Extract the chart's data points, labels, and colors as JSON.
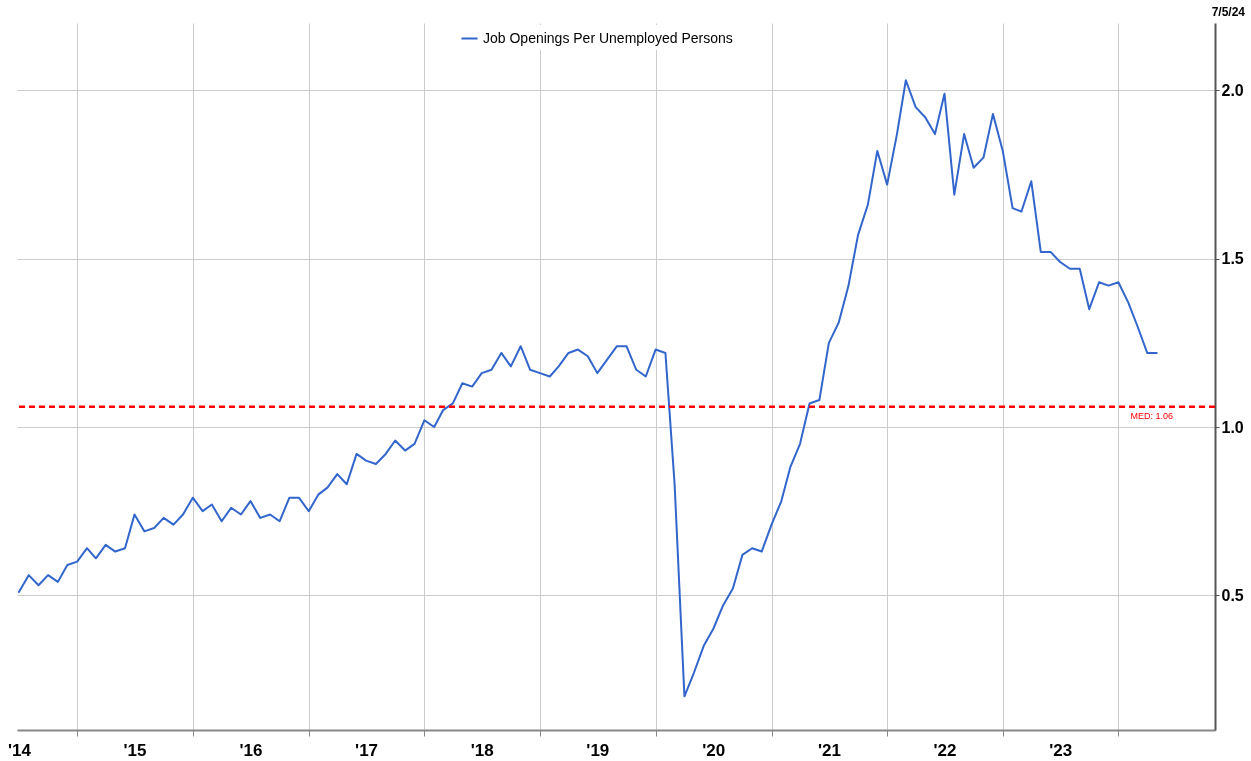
{
  "chart_data": {
    "type": "line",
    "legend": "top",
    "grid": true,
    "x": [
      "2014-07",
      "2014-08",
      "2014-09",
      "2014-10",
      "2014-11",
      "2014-12",
      "2015-01",
      "2015-02",
      "2015-03",
      "2015-04",
      "2015-05",
      "2015-06",
      "2015-07",
      "2015-08",
      "2015-09",
      "2015-10",
      "2015-11",
      "2015-12",
      "2016-01",
      "2016-02",
      "2016-03",
      "2016-04",
      "2016-05",
      "2016-06",
      "2016-07",
      "2016-08",
      "2016-09",
      "2016-10",
      "2016-11",
      "2016-12",
      "2017-01",
      "2017-02",
      "2017-03",
      "2017-04",
      "2017-05",
      "2017-06",
      "2017-07",
      "2017-08",
      "2017-09",
      "2017-10",
      "2017-11",
      "2017-12",
      "2018-01",
      "2018-02",
      "2018-03",
      "2018-04",
      "2018-05",
      "2018-06",
      "2018-07",
      "2018-08",
      "2018-09",
      "2018-10",
      "2018-11",
      "2018-12",
      "2019-01",
      "2019-02",
      "2019-03",
      "2019-04",
      "2019-05",
      "2019-06",
      "2019-07",
      "2019-08",
      "2019-09",
      "2019-10",
      "2019-11",
      "2019-12",
      "2020-01",
      "2020-02",
      "2020-03",
      "2020-04",
      "2020-05",
      "2020-06",
      "2020-07",
      "2020-08",
      "2020-09",
      "2020-10",
      "2020-11",
      "2020-12",
      "2021-01",
      "2021-02",
      "2021-03",
      "2021-04",
      "2021-05",
      "2021-06",
      "2021-07",
      "2021-08",
      "2021-09",
      "2021-10",
      "2021-11",
      "2021-12",
      "2022-01",
      "2022-02",
      "2022-03",
      "2022-04",
      "2022-05",
      "2022-06",
      "2022-07",
      "2022-08",
      "2022-09",
      "2022-10",
      "2022-11",
      "2022-12",
      "2023-01",
      "2023-02",
      "2023-03",
      "2023-04",
      "2023-05",
      "2023-06",
      "2023-07",
      "2023-08",
      "2023-09",
      "2023-10",
      "2023-11",
      "2023-12",
      "2024-01",
      "2024-02",
      "2024-03",
      "2024-04",
      "2024-05"
    ],
    "series": [
      {
        "name": "Job Openings Per Unemployed Persons",
        "color": "#3366cc",
        "values": [
          0.51,
          0.56,
          0.53,
          0.56,
          0.54,
          0.59,
          0.6,
          0.64,
          0.61,
          0.65,
          0.63,
          0.64,
          0.74,
          0.69,
          0.7,
          0.73,
          0.71,
          0.74,
          0.79,
          0.75,
          0.77,
          0.72,
          0.76,
          0.74,
          0.78,
          0.73,
          0.74,
          0.72,
          0.79,
          0.79,
          0.75,
          0.8,
          0.82,
          0.86,
          0.83,
          0.92,
          0.9,
          0.89,
          0.92,
          0.96,
          0.93,
          0.95,
          1.02,
          1.0,
          1.05,
          1.07,
          1.13,
          1.12,
          1.16,
          1.17,
          1.22,
          1.18,
          1.24,
          1.17,
          1.16,
          1.15,
          1.18,
          1.22,
          1.23,
          1.21,
          1.16,
          1.2,
          1.24,
          1.24,
          1.17,
          1.15,
          1.23,
          1.22,
          0.83,
          0.2,
          0.27,
          0.35,
          0.4,
          0.47,
          0.52,
          0.62,
          0.64,
          0.63,
          0.71,
          0.78,
          0.88,
          0.95,
          1.07,
          1.08,
          1.25,
          1.31,
          1.42,
          1.57,
          1.66,
          1.82,
          1.72,
          1.87,
          2.03,
          1.95,
          1.92,
          1.87,
          1.99,
          1.69,
          1.87,
          1.77,
          1.8,
          1.93,
          1.82,
          1.65,
          1.64,
          1.73,
          1.52,
          1.52,
          1.49,
          1.47,
          1.47,
          1.35,
          1.43,
          1.42,
          1.43,
          1.37,
          1.3,
          1.22,
          1.22
        ]
      }
    ],
    "xlim": [
      "2014-06-25",
      "2024-11-01"
    ],
    "xticks": [
      {
        "value": "2014-07",
        "label": "'14"
      },
      {
        "value": "2015-01",
        "label": null
      },
      {
        "value": "2015-07",
        "label": "'15"
      },
      {
        "value": "2016-01",
        "label": null
      },
      {
        "value": "2016-07",
        "label": "'16"
      },
      {
        "value": "2017-01",
        "label": null
      },
      {
        "value": "2017-07",
        "label": "'17"
      },
      {
        "value": "2018-01",
        "label": null
      },
      {
        "value": "2018-07",
        "label": "'18"
      },
      {
        "value": "2019-01",
        "label": null
      },
      {
        "value": "2019-07",
        "label": "'19"
      },
      {
        "value": "2020-01",
        "label": null
      },
      {
        "value": "2020-07",
        "label": "'20"
      },
      {
        "value": "2021-01",
        "label": null
      },
      {
        "value": "2021-07",
        "label": "'21"
      },
      {
        "value": "2022-01",
        "label": null
      },
      {
        "value": "2022-07",
        "label": "'22"
      },
      {
        "value": "2023-01",
        "label": null
      },
      {
        "value": "2023-07",
        "label": "'23"
      },
      {
        "value": "2024-01",
        "label": null
      }
    ],
    "ylim": [
      0.1,
      2.2
    ],
    "yticks": [
      0.5,
      {
        "value": 1,
        "label": "1.0"
      },
      1.5,
      {
        "value": 2,
        "label": "2.0"
      }
    ],
    "ref_lines": [
      {
        "axis": "y",
        "value": 1.06,
        "label": "MED: 1.06",
        "color": "#ff0000",
        "line_style": "dashed"
      }
    ],
    "annotations": [
      "7/5/24"
    ]
  }
}
